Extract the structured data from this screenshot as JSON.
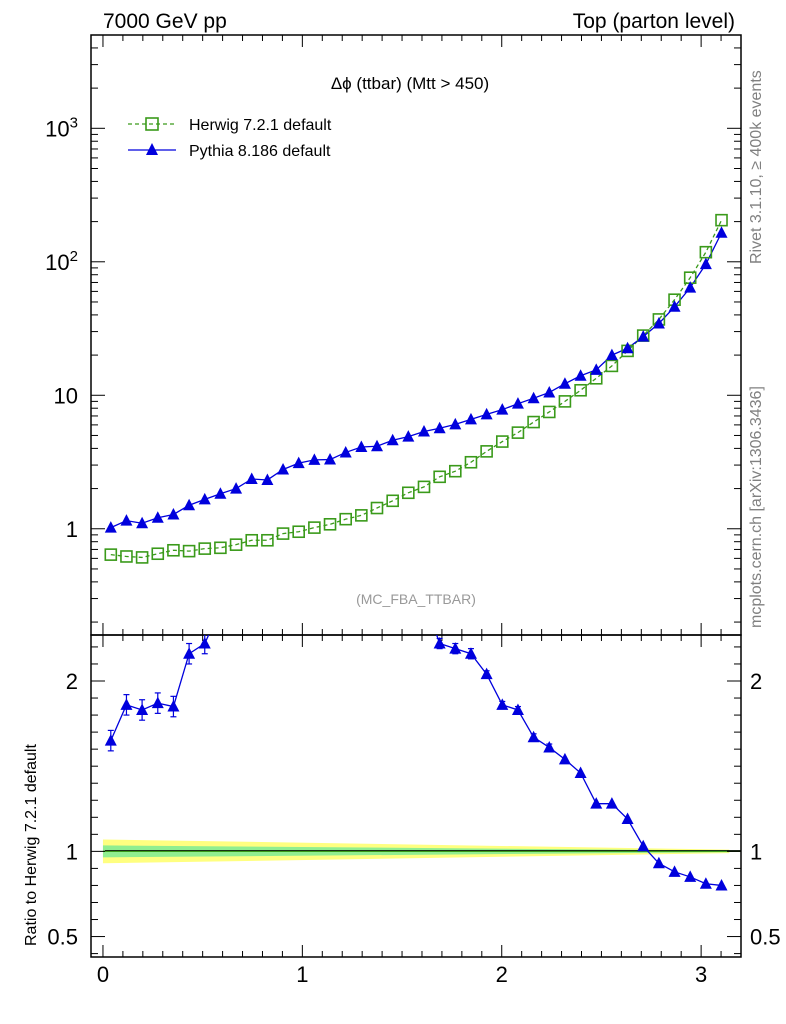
{
  "header": {
    "left": "7000 GeV pp",
    "right": "Top (parton level)"
  },
  "side_labels": {
    "rivet": "Rivet 3.1.10, ≥ 400k events",
    "mcplots": "mcplots.cern.ch [arXiv:1306.3436]"
  },
  "ratio_ylabel": "Ratio to Herwig 7.2.1 default",
  "colors": {
    "herwig": "#3a9a1a",
    "pythia": "#0000dd",
    "band_outer": "#ffff80",
    "band_inner": "#90ee90"
  },
  "chart_data": [
    {
      "type": "scatter",
      "title": "Δϕ (ttbar) (Mtt > 450)",
      "watermark": "(MC_FBA_TTBAR)",
      "yscale": "log",
      "xlim": [
        -0.06,
        3.2
      ],
      "ylim": [
        0.16,
        5000
      ],
      "xticks": [
        "0",
        "1",
        "2",
        "3"
      ],
      "yticks": [
        {
          "value": 1,
          "label": "1"
        },
        {
          "value": 10,
          "label": "10"
        },
        {
          "value": 100,
          "label": "10^2"
        },
        {
          "value": 1000,
          "label": "10^3"
        }
      ],
      "legend_position": "top-left",
      "x": [
        0.0393,
        0.1178,
        0.1963,
        0.2749,
        0.3534,
        0.432,
        0.5105,
        0.589,
        0.6676,
        0.7461,
        0.8247,
        0.9032,
        0.9817,
        1.0603,
        1.1388,
        1.2174,
        1.2959,
        1.3744,
        1.453,
        1.5315,
        1.6101,
        1.6886,
        1.7671,
        1.8457,
        1.9242,
        2.0028,
        2.0813,
        2.1598,
        2.2384,
        2.3169,
        2.3955,
        2.474,
        2.5525,
        2.6311,
        2.7096,
        2.7882,
        2.8667,
        2.9452,
        3.0238,
        3.1023
      ],
      "series": [
        {
          "name": "Herwig 7.2.1 default",
          "marker": "open-square",
          "line": "dashed",
          "values": [
            0.64,
            0.62,
            0.61,
            0.65,
            0.69,
            0.68,
            0.71,
            0.72,
            0.76,
            0.82,
            0.82,
            0.92,
            0.95,
            1.02,
            1.08,
            1.18,
            1.26,
            1.43,
            1.62,
            1.86,
            2.06,
            2.45,
            2.7,
            3.15,
            3.8,
            4.5,
            5.25,
            6.3,
            7.5,
            9.0,
            10.9,
            13.4,
            16.6,
            21.5,
            28.0,
            37.0,
            52.0,
            76.0,
            118,
            205
          ]
        },
        {
          "name": "Pythia 8.186 default",
          "marker": "filled-triangle",
          "line": "solid",
          "values": [
            1.02,
            1.15,
            1.1,
            1.21,
            1.28,
            1.5,
            1.66,
            1.83,
            2.0,
            2.36,
            2.32,
            2.78,
            3.1,
            3.28,
            3.3,
            3.73,
            4.1,
            4.15,
            4.6,
            4.9,
            5.35,
            5.66,
            6.05,
            6.6,
            7.2,
            7.8,
            8.65,
            9.5,
            10.5,
            12.2,
            14.0,
            15.5,
            20.0,
            22.5,
            27.5,
            34.5,
            46.0,
            64.0,
            96.0,
            165
          ]
        }
      ]
    },
    {
      "type": "line",
      "ylabel": "Ratio to Herwig 7.2.1 default",
      "xlim": [
        -0.06,
        3.2
      ],
      "ylim": [
        0.38,
        2.27
      ],
      "xticks": [
        "0",
        "1",
        "2",
        "3"
      ],
      "yticks": [
        {
          "value": 0.5,
          "label": "0.5"
        },
        {
          "value": 1,
          "label": "1"
        },
        {
          "value": 2,
          "label": "2"
        }
      ],
      "x": [
        0.0393,
        0.1178,
        0.1963,
        0.2749,
        0.3534,
        0.432,
        0.5105,
        1.6886,
        1.7671,
        1.8457,
        1.9242,
        2.0028,
        2.0813,
        2.1598,
        2.2384,
        2.3169,
        2.3955,
        2.474,
        2.5525,
        2.6311,
        2.7096,
        2.7882,
        2.8667,
        2.9452,
        3.0238,
        3.1023
      ],
      "series": [
        {
          "name": "Pythia 8.186 default",
          "values": [
            1.65,
            1.86,
            1.83,
            1.87,
            1.85,
            2.16,
            2.22,
            2.22,
            2.19,
            2.16,
            2.04,
            1.86,
            1.83,
            1.67,
            1.61,
            1.54,
            1.46,
            1.28,
            1.28,
            1.19,
            1.03,
            0.93,
            0.88,
            0.85,
            0.81,
            0.8
          ],
          "errors": [
            0.06,
            0.06,
            0.06,
            0.06,
            0.06,
            0.06,
            0.06,
            0.03,
            0.03,
            0.03,
            0.02,
            0.02,
            0.02,
            0.02,
            0.02,
            0.01,
            0.01,
            0.01,
            0.01,
            0.01,
            0.01,
            0.01,
            0.01,
            0.01,
            0.01,
            0.01
          ]
        }
      ],
      "reference_band": {
        "center": 1.0,
        "outer_start": 0.07,
        "outer_end": 0.01,
        "inner_start": 0.035,
        "inner_end": 0.005
      }
    }
  ]
}
